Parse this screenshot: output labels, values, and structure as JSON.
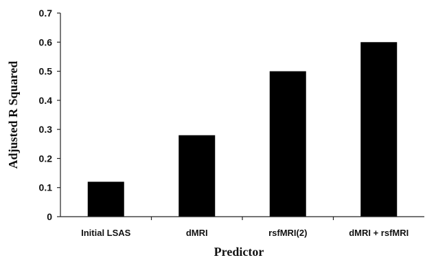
{
  "chart_data": {
    "type": "bar",
    "title": "",
    "xlabel": "Predictor",
    "ylabel": "Adjusted R Squared",
    "categories": [
      "Initial LSAS",
      "dMRI",
      "rsfMRI(2)",
      "dMRI + rsfMRI"
    ],
    "values": [
      0.12,
      0.28,
      0.5,
      0.6
    ],
    "ylim": [
      0,
      0.7
    ],
    "yticks": [
      "0",
      "0.1",
      "0.2",
      "0.3",
      "0.4",
      "0.5",
      "0.6",
      "0.7"
    ],
    "grid": false,
    "legend": "none",
    "bar_color": "#000000"
  }
}
